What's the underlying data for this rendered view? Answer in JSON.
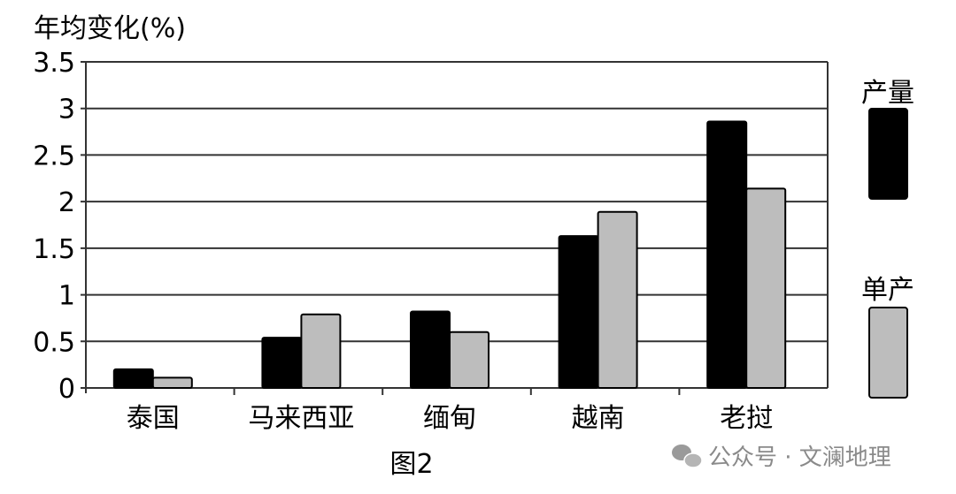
{
  "chart_data": {
    "type": "bar",
    "ylabel": "年均变化(%)",
    "caption": "图2",
    "categories": [
      "泰国",
      "马来西亚",
      "缅甸",
      "越南",
      "老挝"
    ],
    "series": [
      {
        "name": "产量",
        "color": "#000000",
        "values": [
          0.2,
          0.54,
          0.82,
          1.63,
          2.86
        ]
      },
      {
        "name": "单产",
        "color": "#bdbdbd",
        "values": [
          0.11,
          0.79,
          0.6,
          1.89,
          2.14
        ]
      }
    ],
    "ylim": [
      0,
      3.5
    ],
    "yticks": [
      "0",
      "0.5",
      "1",
      "1.5",
      "2",
      "2.5",
      "3",
      "3.5"
    ],
    "grid": true,
    "legend_position": "right"
  },
  "watermark": "公众号 · 文澜地理",
  "watermark_icon": "wechat-icon"
}
